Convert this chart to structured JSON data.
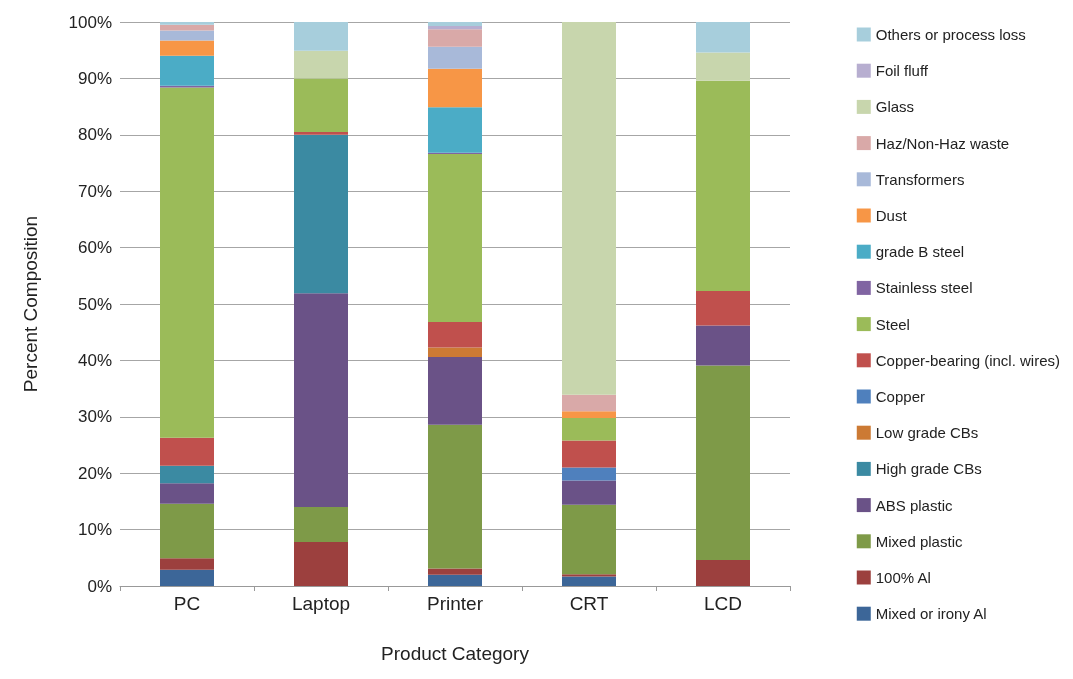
{
  "chart_data": {
    "type": "bar",
    "stacked": true,
    "xlabel": "Product Category",
    "ylabel": "Percent Composition",
    "categories": [
      "PC",
      "Laptop",
      "Printer",
      "CRT",
      "LCD"
    ],
    "ylim": [
      0,
      100
    ],
    "yticks": [
      {
        "value": 0,
        "label": "0%"
      },
      {
        "value": 10,
        "label": "10%"
      },
      {
        "value": 20,
        "label": "20%"
      },
      {
        "value": 30,
        "label": "30%"
      },
      {
        "value": 40,
        "label": "40%"
      },
      {
        "value": 50,
        "label": "50%"
      },
      {
        "value": 60,
        "label": "60%"
      },
      {
        "value": 70,
        "label": "70%"
      },
      {
        "value": 80,
        "label": "80%"
      },
      {
        "value": 90,
        "label": "90%"
      },
      {
        "value": 100,
        "label": "100%"
      }
    ],
    "grid": "y",
    "legend": "right",
    "series": [
      {
        "name": "Mixed or irony Al",
        "color": "#3c6698",
        "values": [
          2.9,
          0,
          2.0,
          1.7,
          0
        ]
      },
      {
        "name": "100% Al",
        "color": "#9c403e",
        "values": [
          2.0,
          7.8,
          1.1,
          0.4,
          4.6
        ]
      },
      {
        "name": "Mixed plastic",
        "color": "#7e9a48",
        "values": [
          9.7,
          6.2,
          25.5,
          12.3,
          34.5
        ]
      },
      {
        "name": "ABS plastic",
        "color": "#6a5287",
        "values": [
          3.6,
          37.9,
          12.0,
          4.3,
          7.1
        ]
      },
      {
        "name": "High grade CBs",
        "color": "#3b8aa2",
        "values": [
          3.1,
          28.1,
          0,
          0,
          0
        ]
      },
      {
        "name": "Low grade CBs",
        "color": "#cc7a34",
        "values": [
          0,
          0,
          1.7,
          0,
          0
        ]
      },
      {
        "name": "Copper",
        "color": "#4f80bd",
        "values": [
          0,
          0,
          0,
          2.3,
          0
        ]
      },
      {
        "name": "Copper-bearing (incl. wires)",
        "color": "#c0504d",
        "values": [
          5.0,
          0.5,
          4.5,
          4.8,
          6.1
        ]
      },
      {
        "name": "Steel",
        "color": "#9bbb59",
        "values": [
          62.1,
          9.5,
          29.8,
          4.0,
          37.3
        ]
      },
      {
        "name": "Stainless steel",
        "color": "#8064a2",
        "values": [
          0.3,
          0,
          0.2,
          0,
          0
        ]
      },
      {
        "name": "grade B steel",
        "color": "#4bacc6",
        "values": [
          5.3,
          0,
          8.1,
          0,
          0
        ]
      },
      {
        "name": "Dust",
        "color": "#f79646",
        "values": [
          2.7,
          0,
          6.8,
          1.2,
          0
        ]
      },
      {
        "name": "Transformers",
        "color": "#a8b9d9",
        "values": [
          1.8,
          0,
          3.9,
          0,
          0
        ]
      },
      {
        "name": "Haz/Non-Haz waste",
        "color": "#d9a9a8",
        "values": [
          1.0,
          0,
          3.1,
          2.9,
          0
        ]
      },
      {
        "name": "Glass",
        "color": "#c8d6ad",
        "values": [
          0,
          4.9,
          0,
          66.1,
          5.0
        ]
      },
      {
        "name": "Foil fluff",
        "color": "#b7aed0",
        "values": [
          0,
          0,
          0.6,
          0,
          0
        ]
      },
      {
        "name": "Others or process loss",
        "color": "#a7cedc",
        "values": [
          0.5,
          5.1,
          0.7,
          0,
          5.4
        ]
      }
    ]
  }
}
